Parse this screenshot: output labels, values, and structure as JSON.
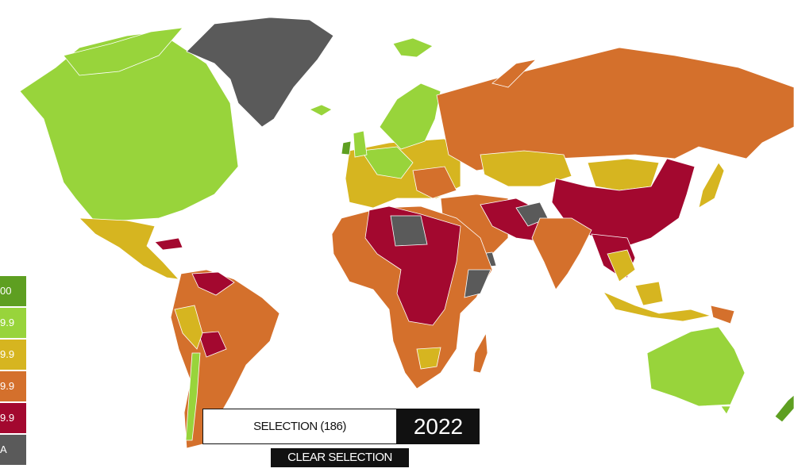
{
  "legend": {
    "items": [
      {
        "label": "00",
        "color": "#5e9f21"
      },
      {
        "label": "9.9",
        "color": "#98d43b"
      },
      {
        "label": "9.9",
        "color": "#d6b520"
      },
      {
        "label": "9.9",
        "color": "#d4702c"
      },
      {
        "label": "9.9",
        "color": "#a3082f"
      },
      {
        "label": "A",
        "color": "#5a5a5a"
      }
    ]
  },
  "selection": {
    "label": "SELECTION (186)"
  },
  "year": "2022",
  "clear_selection": "CLEAR SELECTION"
}
